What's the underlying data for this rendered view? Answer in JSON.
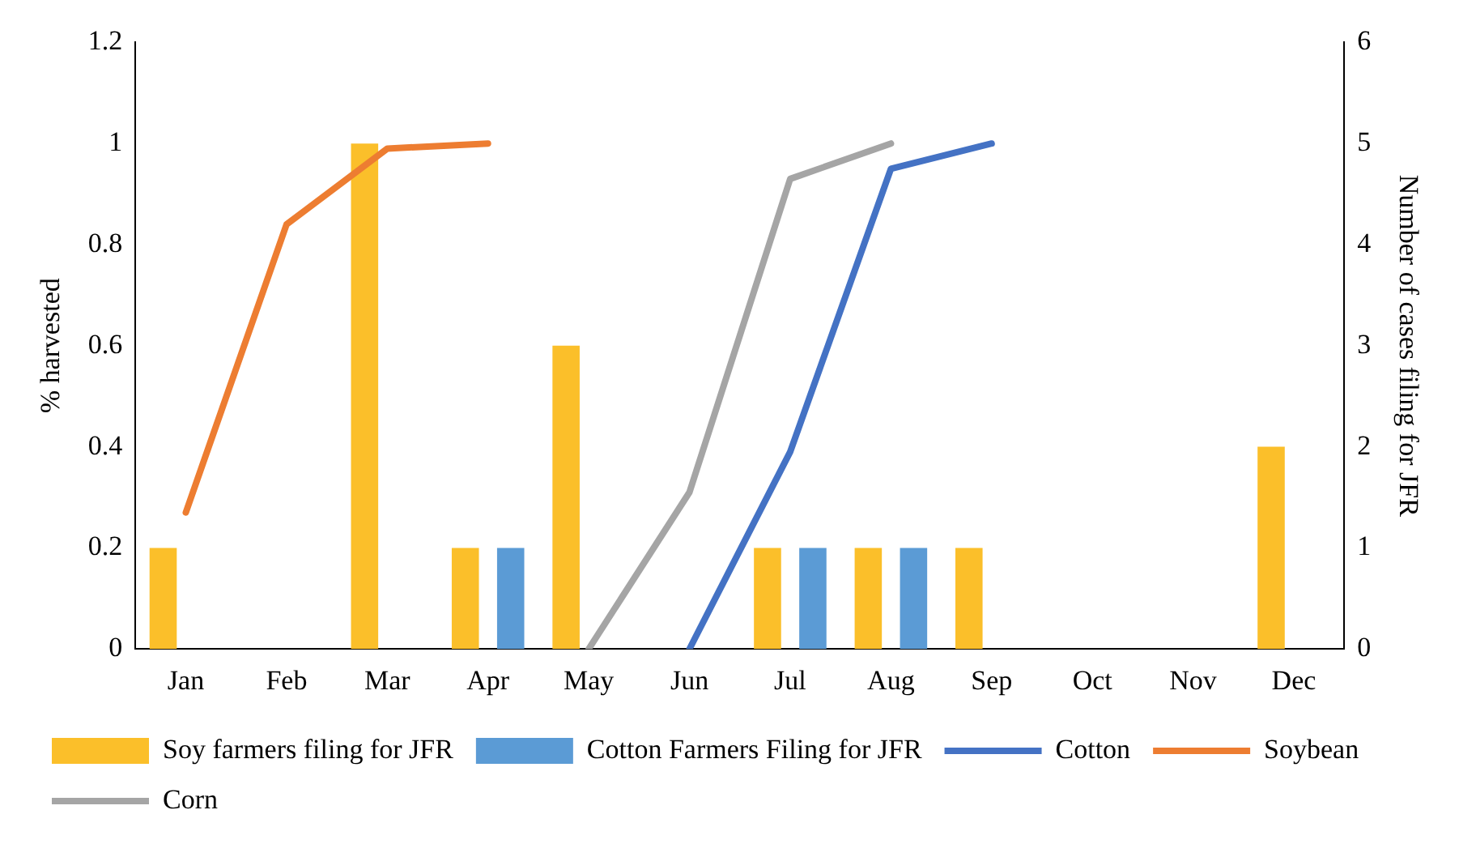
{
  "chart_data": {
    "type": "bar",
    "categories": [
      "Jan",
      "Feb",
      "Mar",
      "Apr",
      "May",
      "Jun",
      "Jul",
      "Aug",
      "Sep",
      "Oct",
      "Nov",
      "Dec"
    ],
    "ylabel": "% harvested",
    "y2label": "Number of cases filing for JFR",
    "ylim": [
      0,
      1.2
    ],
    "yticks": [
      0,
      0.2,
      0.4,
      0.6,
      0.8,
      1,
      1.2
    ],
    "y2lim": [
      0,
      6
    ],
    "y2ticks": [
      0,
      1,
      2,
      3,
      4,
      5,
      6
    ],
    "grid": false,
    "legend": "bottom",
    "marker": "none",
    "series": [
      {
        "name": "Soy farmers filing for JFR",
        "axis": "y2",
        "color": "#fbbf2a",
        "values": [
          1,
          null,
          5,
          1,
          3,
          null,
          1,
          1,
          1,
          null,
          null,
          2
        ]
      },
      {
        "name": "Cotton Farmers Filing for JFR",
        "axis": "y2",
        "color": "#5b9bd5",
        "values": [
          null,
          null,
          null,
          1,
          null,
          null,
          1,
          1,
          null,
          null,
          null,
          null
        ]
      },
      {
        "name": "Cotton",
        "type": "line",
        "axis": "y",
        "color": "#4472c4",
        "values": [
          null,
          null,
          null,
          null,
          null,
          0,
          0.39,
          0.95,
          1,
          null,
          null,
          null
        ]
      },
      {
        "name": "Soybean",
        "type": "line",
        "axis": "y",
        "color": "#ed7d31",
        "values": [
          0.27,
          0.84,
          0.99,
          1,
          null,
          null,
          null,
          null,
          null,
          null,
          null,
          null
        ]
      },
      {
        "name": "Corn",
        "type": "line",
        "axis": "y",
        "color": "#a5a5a5",
        "values": [
          null,
          null,
          null,
          null,
          0,
          0.31,
          0.93,
          1,
          null,
          null,
          null,
          null
        ]
      }
    ]
  }
}
